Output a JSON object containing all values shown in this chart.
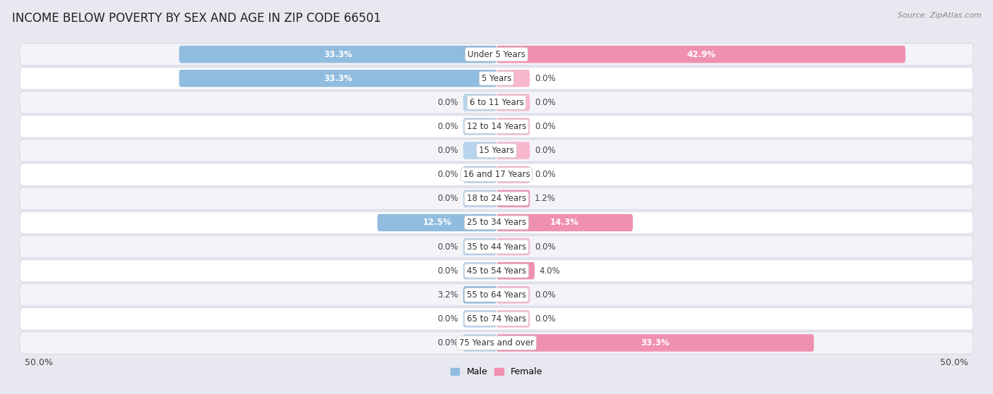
{
  "title": "INCOME BELOW POVERTY BY SEX AND AGE IN ZIP CODE 66501",
  "source": "Source: ZipAtlas.com",
  "categories": [
    "Under 5 Years",
    "5 Years",
    "6 to 11 Years",
    "12 to 14 Years",
    "15 Years",
    "16 and 17 Years",
    "18 to 24 Years",
    "25 to 34 Years",
    "35 to 44 Years",
    "45 to 54 Years",
    "55 to 64 Years",
    "65 to 74 Years",
    "75 Years and over"
  ],
  "male_values": [
    33.3,
    33.3,
    0.0,
    0.0,
    0.0,
    0.0,
    0.0,
    12.5,
    0.0,
    0.0,
    3.2,
    0.0,
    0.0
  ],
  "female_values": [
    42.9,
    0.0,
    0.0,
    0.0,
    0.0,
    0.0,
    1.2,
    14.3,
    0.0,
    4.0,
    0.0,
    0.0,
    33.3
  ],
  "male_color": "#90bce0",
  "female_color": "#f090b0",
  "male_stub_color": "#b8d4ec",
  "female_stub_color": "#f8b8cc",
  "male_label": "Male",
  "female_label": "Female",
  "xlim": 50.0,
  "min_stub": 3.5,
  "background_color": "#e8e8f0",
  "row_bg_color": "#f4f4f8",
  "row_alt_bg_color": "#ffffff",
  "title_fontsize": 12,
  "source_fontsize": 8,
  "axis_label_fontsize": 9,
  "legend_fontsize": 9,
  "value_fontsize": 8.5,
  "category_fontsize": 8.5
}
